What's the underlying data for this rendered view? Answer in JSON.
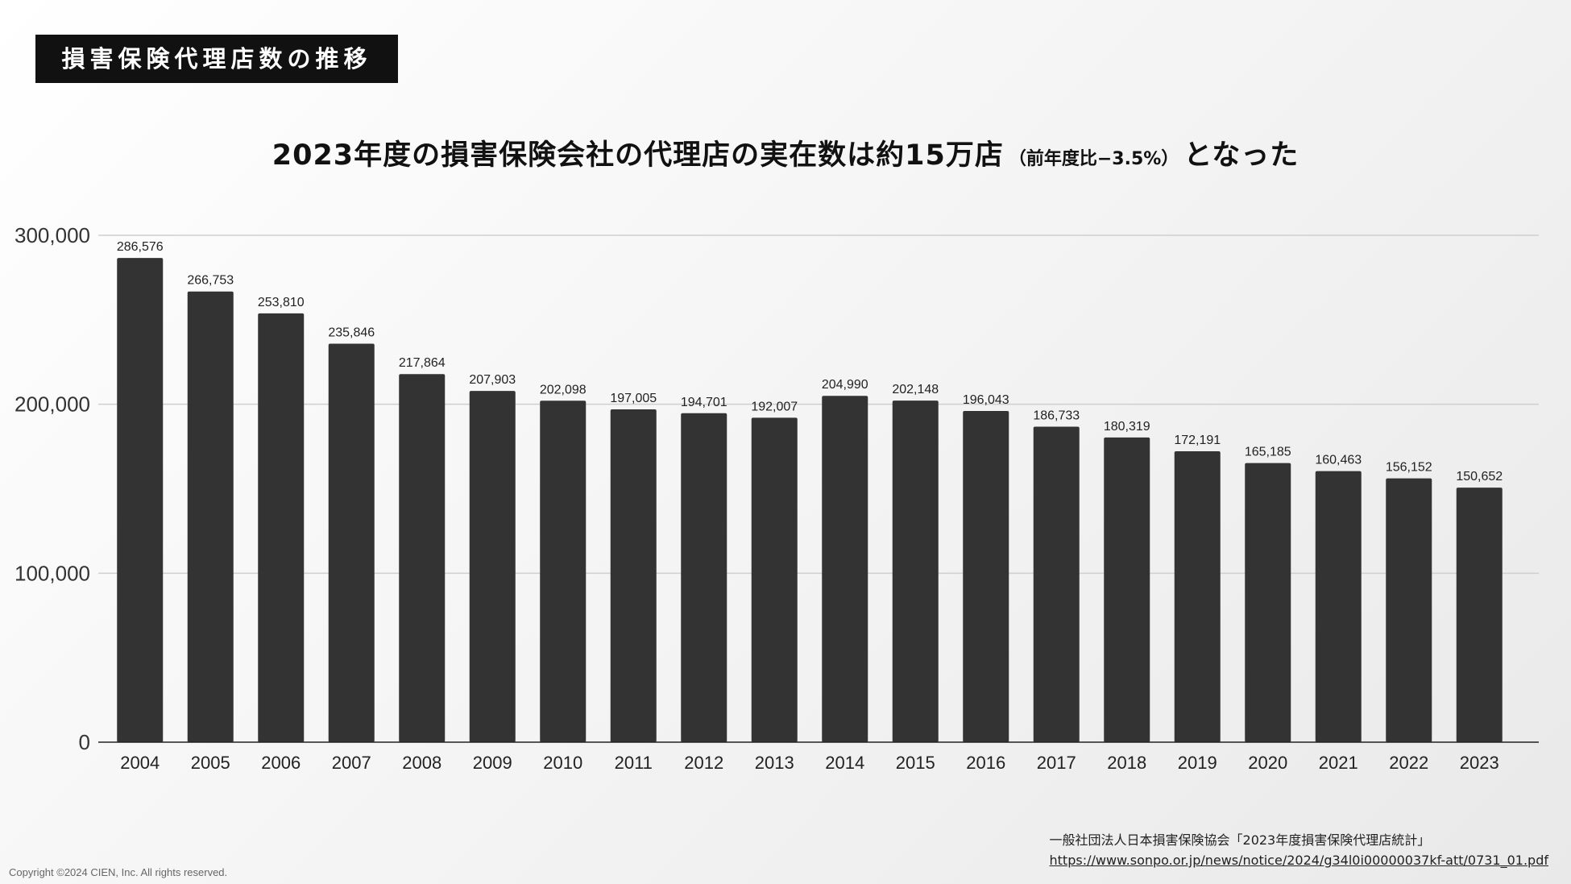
{
  "header": {
    "label": "損害保険代理店数の推移"
  },
  "headline": {
    "main": "2023年度の損害保険会社の代理店の実在数は約15万店",
    "note": "（前年度比−3.5%）",
    "tail": "となった"
  },
  "chart_data": {
    "type": "bar",
    "title": "2023年度の損害保険会社の代理店の実在数は約15万店（前年度比−3.5%）となった",
    "xlabel": "",
    "ylabel": "",
    "categories": [
      "2004",
      "2005",
      "2006",
      "2007",
      "2008",
      "2009",
      "2010",
      "2011",
      "2012",
      "2013",
      "2014",
      "2015",
      "2016",
      "2017",
      "2018",
      "2019",
      "2020",
      "2021",
      "2022",
      "2023"
    ],
    "values": [
      286576,
      266753,
      253810,
      235846,
      217864,
      207903,
      202098,
      197005,
      194701,
      192007,
      204990,
      202148,
      196043,
      186733,
      180319,
      172191,
      165185,
      160463,
      156152,
      150652
    ],
    "value_labels": [
      "286,576",
      "266,753",
      "253,810",
      "235,846",
      "217,864",
      "207,903",
      "202,098",
      "197,005",
      "194,701",
      "192,007",
      "204,990",
      "202,148",
      "196,043",
      "186,733",
      "180,319",
      "172,191",
      "165,185",
      "160,463",
      "156,152",
      "150,652"
    ],
    "ylim": [
      0,
      300000
    ],
    "yticks": [
      0,
      100000,
      200000,
      300000
    ],
    "ytick_labels": [
      "0",
      "100,000",
      "200,000",
      "300,000"
    ],
    "grid": true,
    "legend": "none",
    "colors": {
      "bar": "#333333",
      "grid": "#cfcfcf",
      "axis": "#222222",
      "text": "#222222"
    }
  },
  "source": {
    "label": "一般社団法人日本損害保険協会「2023年度損害保険代理店統計」",
    "url": "https://www.sonpo.or.jp/news/notice/2024/g34l0i00000037kf-att/0731_01.pdf"
  },
  "copyright": "Copyright ©2024 CIEN, Inc. All rights reserved."
}
